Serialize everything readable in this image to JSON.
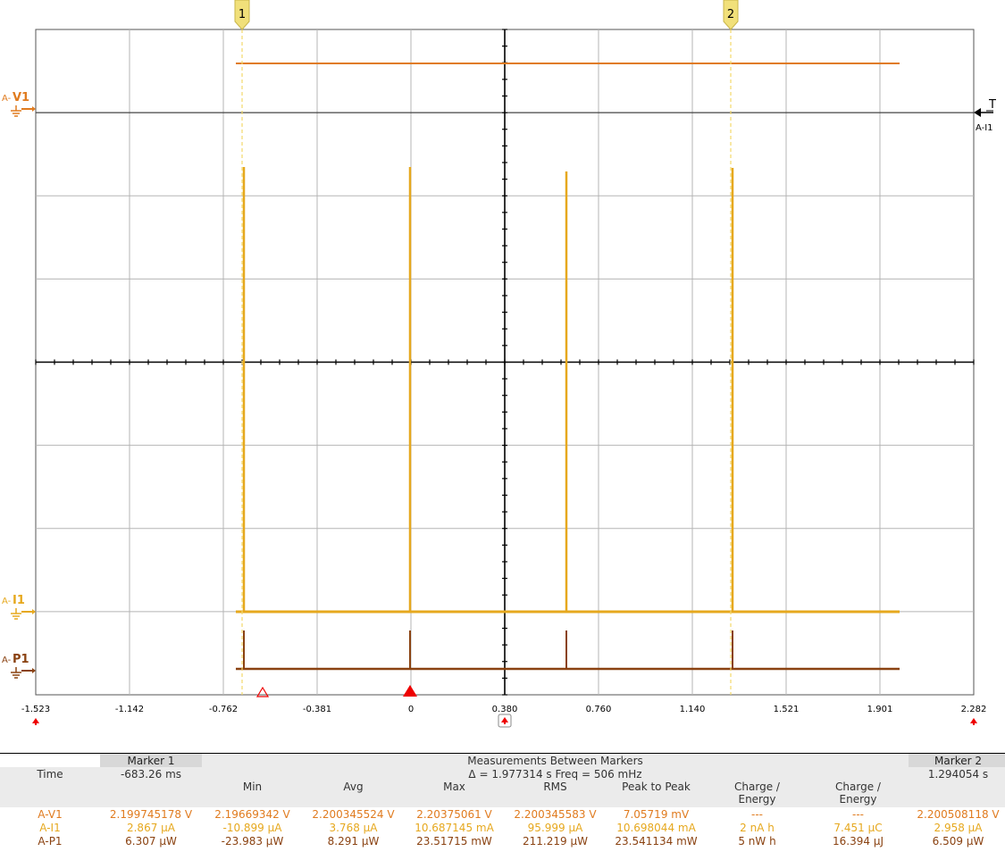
{
  "scope": {
    "x_ticks": [
      "-1.523",
      "-1.142",
      "-0.762",
      "-0.381",
      "0",
      "0.380",
      "0.760",
      "1.140",
      "1.521",
      "1.901",
      "2.282"
    ],
    "markers": [
      {
        "label": "1"
      },
      {
        "label": "2"
      }
    ],
    "channels": [
      {
        "prefix": "A-",
        "name": "V1",
        "color": "#e07b1f"
      },
      {
        "prefix": "A-",
        "name": "I1",
        "color": "#e6a81e"
      },
      {
        "prefix": "A-",
        "name": "P1",
        "color": "#8a4211"
      }
    ],
    "trigger": {
      "label": "T",
      "source": "A-I1"
    }
  },
  "measurements": {
    "marker1_header": "Marker 1",
    "between_header": "Measurements Between Markers",
    "marker2_header": "Marker 2",
    "time_label": "Time",
    "marker1_time": "-683.26 ms",
    "delta_text": "Δ = 1.977314 s   Freq = 506 mHz",
    "marker2_time": "1.294054 s",
    "columns": [
      "Min",
      "Avg",
      "Max",
      "RMS",
      "Peak to Peak",
      "Charge / Energy",
      "Charge / Energy"
    ],
    "rows": [
      {
        "name": "A-V1",
        "m1": "2.199745178 V",
        "min": "2.19669342 V",
        "avg": "2.200345524 V",
        "max": "2.20375061 V",
        "rms": "2.200345583 V",
        "p2p": "7.05719 mV",
        "ce1": "---",
        "ce2": "---",
        "m2": "2.200508118 V"
      },
      {
        "name": "A-I1",
        "m1": "2.867 µA",
        "min": "-10.899 µA",
        "avg": "3.768 µA",
        "max": "10.687145 mA",
        "rms": "95.999 µA",
        "p2p": "10.698044 mA",
        "ce1": "2 nA h",
        "ce2": "7.451 µC",
        "m2": "2.958 µA"
      },
      {
        "name": "A-P1",
        "m1": "6.307 µW",
        "min": "-23.983 µW",
        "avg": "8.291 µW",
        "max": "23.51715 mW",
        "rms": "211.219 µW",
        "p2p": "23.541134 mW",
        "ce1": "5 nW h",
        "ce2": "16.394 µJ",
        "m2": "6.509 µW"
      }
    ]
  }
}
